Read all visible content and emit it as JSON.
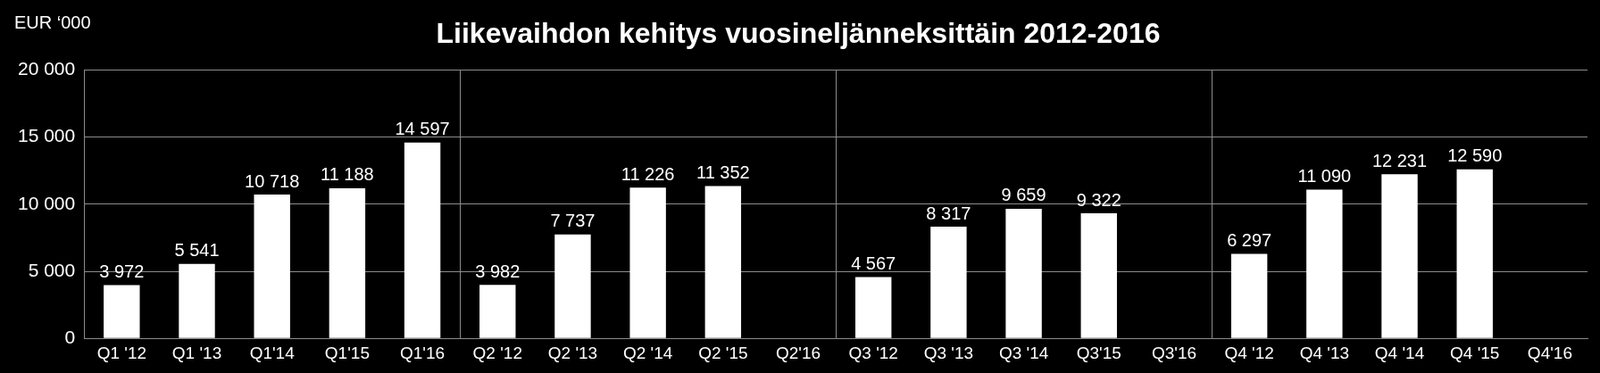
{
  "chart_data": {
    "type": "bar",
    "title": "Liikevaihdon kehitys vuosineljänneksittäin 2012-2016",
    "y_label": "EUR ‘000",
    "categories": [
      "Q1 '12",
      "Q1 '13",
      "Q1'14",
      "Q1'15",
      "Q1'16",
      "Q2 '12",
      "Q2 '13",
      "Q2 '14",
      "Q2 '15",
      "Q2'16",
      "Q3 '12",
      "Q3 '13",
      "Q3 '14",
      "Q3'15",
      "Q3'16",
      "Q4 '12",
      "Q4 '13",
      "Q4 '14",
      "Q4 '15",
      "Q4'16"
    ],
    "values": [
      3972,
      5541,
      10718,
      11188,
      14597,
      3982,
      7737,
      11226,
      11352,
      null,
      4567,
      8317,
      9659,
      9322,
      null,
      6297,
      11090,
      12231,
      12590,
      null
    ],
    "value_labels": [
      "3 972",
      "5 541",
      "10 718",
      "11 188",
      "14 597",
      "3 982",
      "7 737",
      "11 226",
      "11 352",
      null,
      "4 567",
      "8 317",
      "9 659",
      "9 322",
      null,
      "6 297",
      "11 090",
      "12 231",
      "12 590",
      null
    ],
    "color": "#ffffff",
    "ylim": [
      0,
      20000
    ],
    "yticks": [
      0,
      {
        "value": 5000,
        "label": "5 000"
      },
      {
        "value": 10000,
        "label": "10 000"
      },
      {
        "value": 15000,
        "label": "15 000"
      },
      {
        "value": 20000,
        "label": "20 000"
      }
    ],
    "grid": true,
    "data_labels": true
  }
}
